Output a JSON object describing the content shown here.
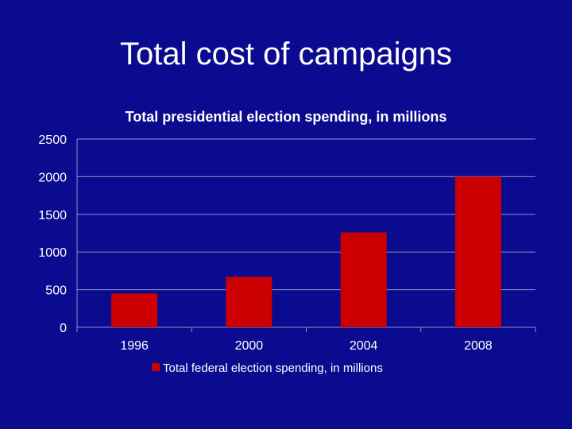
{
  "slide": {
    "title": "Total cost of campaigns"
  },
  "colors": {
    "background": "#0b0b8f",
    "bar": "#cc0000",
    "text": "#ffffff",
    "gridline": "#8f8fd0"
  },
  "chart_data": {
    "type": "bar",
    "title": "Total presidential election spending, in millions",
    "xlabel": "",
    "ylabel": "",
    "categories": [
      "1996",
      "2000",
      "2004",
      "2008"
    ],
    "series": [
      {
        "name": "Total federal election spending, in millions",
        "values": [
          450,
          670,
          1260,
          2000
        ]
      }
    ],
    "ylim": [
      0,
      2500
    ],
    "yticks": [
      0,
      500,
      1000,
      1500,
      2000,
      2500
    ],
    "grid": true,
    "legend_position": "bottom"
  }
}
